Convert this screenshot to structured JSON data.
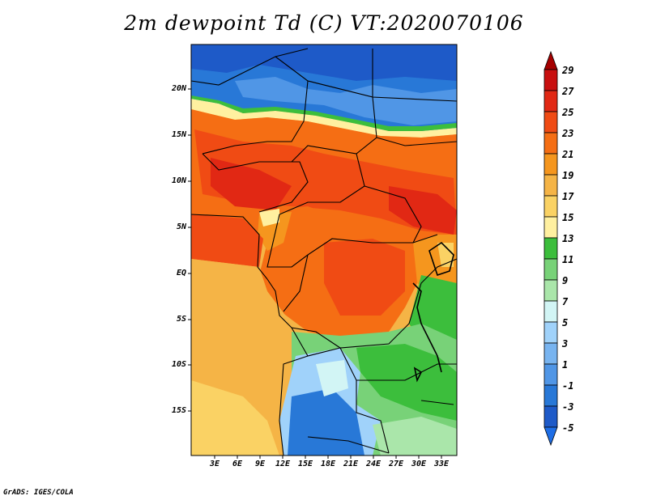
{
  "title": "2m dewpoint Td (C) VT:2020070106",
  "credit": "GrADS: IGES/COLA",
  "map": {
    "lat_labels": [
      "20N",
      "15N",
      "10N",
      "5N",
      "EQ",
      "5S",
      "10S",
      "15S"
    ],
    "lon_labels": [
      "3E",
      "6E",
      "9E",
      "12E",
      "15E",
      "18E",
      "21E",
      "24E",
      "27E",
      "30E",
      "33E"
    ],
    "lon_range": [
      0,
      35
    ],
    "lat_range": [
      -20,
      24
    ]
  },
  "colorbar": {
    "labels": [
      "29",
      "27",
      "25",
      "23",
      "21",
      "19",
      "17",
      "15",
      "13",
      "11",
      "9",
      "7",
      "5",
      "3",
      "1",
      "-1",
      "-3",
      "-5"
    ],
    "colors": [
      "#a50000",
      "#c80f0f",
      "#e12814",
      "#f04b14",
      "#f56e14",
      "#f5961e",
      "#f5b446",
      "#fad264",
      "#fff0a0",
      "#3cbe3c",
      "#78d278",
      "#aae6aa",
      "#d2f5f5",
      "#a0d2fa",
      "#78b4f0",
      "#5096e6",
      "#2878d7",
      "#1e5ac8",
      "#1e6ee6"
    ]
  }
}
